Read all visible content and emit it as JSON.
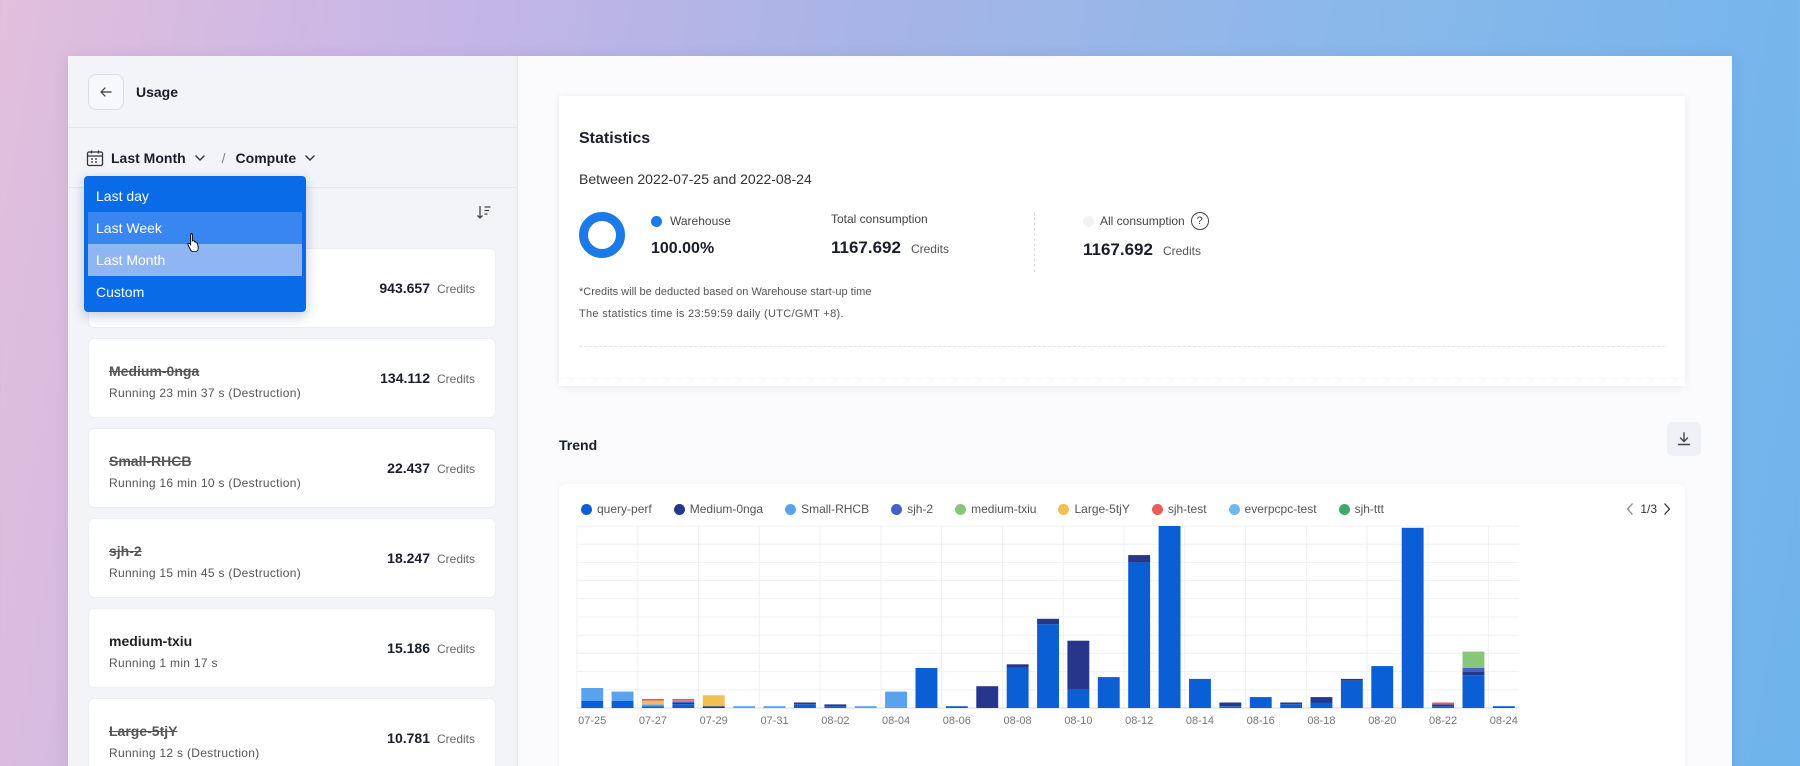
{
  "sidebar": {
    "title": "Usage",
    "period_filter": "Last Month",
    "resource_filter": "Compute",
    "dropdown_options": [
      "Last day",
      "Last Week",
      "Last Month",
      "Custom"
    ],
    "cards": [
      {
        "name": "",
        "sub": "",
        "value": "943.657",
        "unit": "Credits"
      },
      {
        "name": "Medium-0nga",
        "sub": "Running 23 min 37 s (Destruction)",
        "value": "134.112",
        "unit": "Credits"
      },
      {
        "name": "Small-RHCB",
        "sub": "Running 16 min 10 s (Destruction)",
        "value": "22.437",
        "unit": "Credits"
      },
      {
        "name": "sjh-2",
        "sub": "Running 15 min 45 s (Destruction)",
        "value": "18.247",
        "unit": "Credits"
      },
      {
        "name": "medium-txiu",
        "sub": "Running 1 min 17 s",
        "value": "15.186",
        "unit": "Credits"
      },
      {
        "name": "Large-5tjY",
        "sub": "Running 12 s (Destruction)",
        "value": "10.781",
        "unit": "Credits"
      }
    ]
  },
  "statistics": {
    "title": "Statistics",
    "range": "Between 2022-07-25 and 2022-08-24",
    "warehouse_label": "Warehouse",
    "warehouse_pct": "100.00%",
    "total_label": "Total consumption",
    "total_value": "1167.692",
    "all_label": "All consumption",
    "all_value": "1167.692",
    "unit": "Credits",
    "note1": "*Credits will be deducted based on Warehouse start-up time",
    "note2": "The statistics time is 23:59:59 daily (UTC/GMT +8).",
    "help_symbol": "?"
  },
  "trend": {
    "title": "Trend",
    "pager": "1/3"
  },
  "colors": {
    "accent": "#0a6be8",
    "query-perf": "#0a5fd4",
    "Medium-0nga": "#27358a",
    "Small-RHCB": "#5aa2ee",
    "sjh-2": "#4560c6",
    "medium-txiu": "#86c77a",
    "Large-5tjY": "#f0c050",
    "sjh-test": "#e85c5c",
    "everpcpc-test": "#6db9e8",
    "sjh-ttt": "#3ea66f"
  },
  "chart_data": {
    "type": "bar",
    "stacked": true,
    "categories": [
      "07-25",
      "07-26",
      "07-27",
      "07-28",
      "07-29",
      "07-30",
      "07-31",
      "08-01",
      "08-02",
      "08-03",
      "08-04",
      "08-05",
      "08-06",
      "08-07",
      "08-08",
      "08-09",
      "08-10",
      "08-11",
      "08-12",
      "08-13",
      "08-14",
      "08-15",
      "08-16",
      "08-17",
      "08-18",
      "08-19",
      "08-20",
      "08-21",
      "08-22",
      "08-23",
      "08-24"
    ],
    "tick_labels": [
      "07-25",
      "07-27",
      "07-29",
      "07-31",
      "08-02",
      "08-04",
      "08-06",
      "08-08",
      "08-10",
      "08-12",
      "08-14",
      "08-16",
      "08-18",
      "08-20",
      "08-22",
      "08-24"
    ],
    "ylim": [
      0,
      100
    ],
    "grid": true,
    "series": [
      {
        "name": "query-perf",
        "values": [
          4,
          4,
          1,
          2,
          0,
          0,
          0,
          2,
          1,
          0,
          0,
          22,
          1,
          0,
          22,
          46,
          10,
          17,
          80,
          100,
          16,
          1,
          6,
          2,
          3,
          15,
          23,
          99,
          1,
          18,
          1
        ]
      },
      {
        "name": "Medium-0nga",
        "values": [
          0,
          0,
          0,
          1,
          1,
          0,
          0,
          1,
          1,
          0,
          0,
          0,
          0,
          12,
          2,
          3,
          27,
          0,
          4,
          0,
          0,
          2,
          0,
          1,
          3,
          1,
          0,
          0,
          1,
          2,
          0
        ]
      },
      {
        "name": "Small-RHCB",
        "values": [
          7,
          5,
          1,
          1,
          0,
          1,
          1,
          0,
          0,
          1,
          9,
          0,
          0,
          0,
          0,
          0,
          0,
          0,
          0,
          0,
          0,
          0,
          0,
          0,
          0,
          0,
          0,
          0,
          0,
          0,
          0
        ]
      },
      {
        "name": "sjh-2",
        "values": [
          0,
          0,
          0,
          0,
          0,
          0,
          0,
          0,
          0,
          0,
          0,
          0,
          0,
          0,
          0,
          0,
          0,
          0,
          0,
          0,
          0,
          0,
          0,
          0,
          0,
          0,
          0,
          0,
          0,
          2,
          0
        ]
      },
      {
        "name": "medium-txiu",
        "values": [
          0,
          0,
          0,
          0,
          0,
          0,
          0,
          0,
          0,
          0,
          0,
          0,
          0,
          0,
          0,
          0,
          0,
          0,
          0,
          0,
          0,
          0,
          0,
          0,
          0,
          0,
          0,
          0,
          0,
          9,
          0
        ]
      },
      {
        "name": "Large-5tjY",
        "values": [
          0,
          0,
          2,
          0,
          6,
          0,
          0,
          0,
          0,
          0,
          0,
          0,
          0,
          0,
          0,
          0,
          0,
          0,
          0,
          0,
          0,
          0,
          0,
          0,
          0,
          0,
          0,
          0,
          0,
          0,
          0
        ]
      },
      {
        "name": "sjh-test",
        "values": [
          0,
          0,
          1,
          1,
          0,
          0,
          0,
          0,
          0,
          0,
          0,
          0,
          0,
          0,
          0,
          0,
          0,
          0,
          0,
          0,
          0,
          0,
          0,
          0,
          0,
          0,
          0,
          0,
          1,
          0,
          0
        ]
      },
      {
        "name": "everpcpc-test",
        "values": [
          0,
          0,
          0,
          0,
          0,
          0,
          0,
          0,
          0,
          0,
          0,
          0,
          0,
          0,
          0,
          0,
          0,
          0,
          0,
          0,
          0,
          0,
          0,
          0,
          0,
          0,
          0,
          0,
          0,
          0,
          0
        ]
      },
      {
        "name": "sjh-ttt",
        "values": [
          0,
          0,
          0,
          0,
          0,
          0,
          0,
          0,
          0,
          0,
          0,
          0,
          0,
          0,
          0,
          0,
          0,
          0,
          0,
          0,
          0,
          0,
          0,
          0,
          0,
          0,
          0,
          0,
          0,
          0,
          0
        ]
      }
    ]
  }
}
